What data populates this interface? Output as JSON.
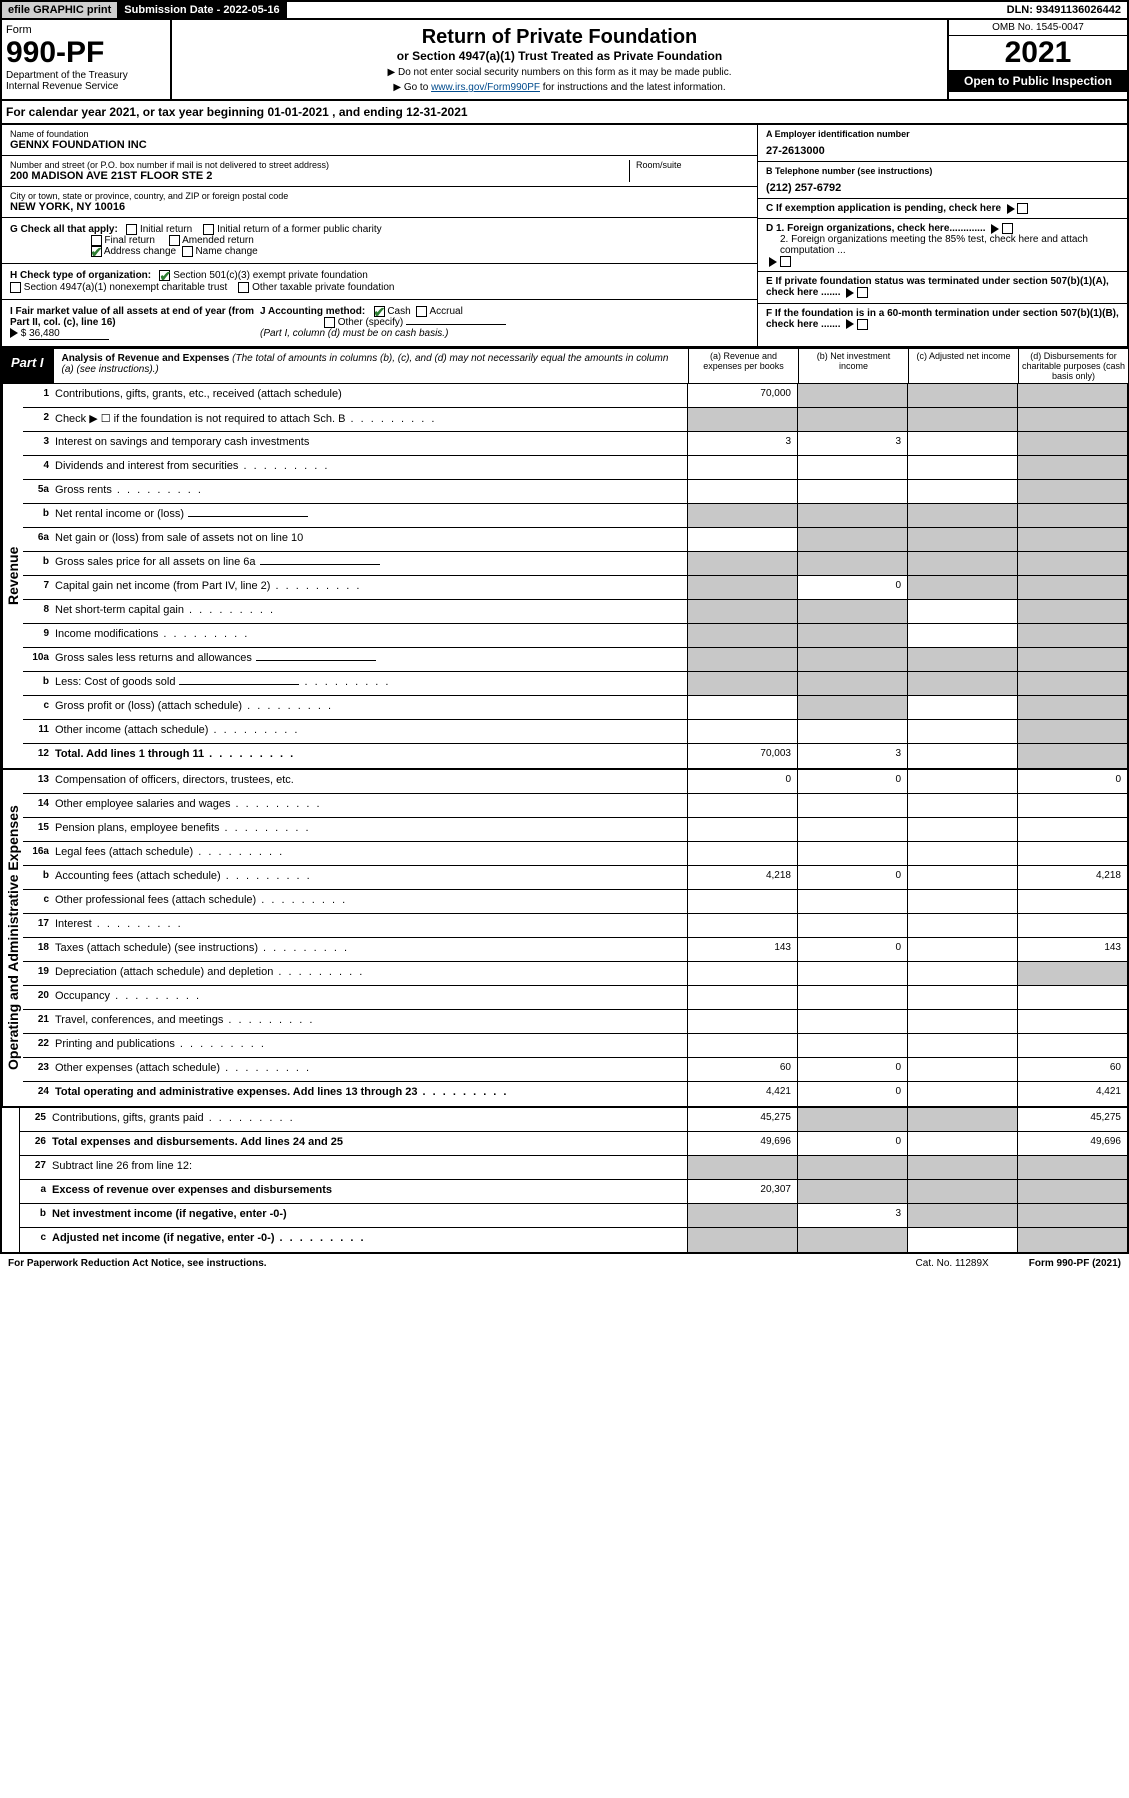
{
  "top": {
    "efile": "efile GRAPHIC print",
    "subdate_label": "Submission Date - 2022-05-16",
    "dln": "DLN: 93491136026442"
  },
  "header": {
    "form_word": "Form",
    "form_num": "990-PF",
    "dept": "Department of the Treasury",
    "irs": "Internal Revenue Service",
    "title": "Return of Private Foundation",
    "subtitle": "or Section 4947(a)(1) Trust Treated as Private Foundation",
    "instr1": "▶ Do not enter social security numbers on this form as it may be made public.",
    "instr2_pre": "▶ Go to ",
    "instr2_link": "www.irs.gov/Form990PF",
    "instr2_post": " for instructions and the latest information.",
    "omb": "OMB No. 1545-0047",
    "year": "2021",
    "open": "Open to Public Inspection"
  },
  "calyear": "For calendar year 2021, or tax year beginning 01-01-2021           , and ending 12-31-2021",
  "info": {
    "name_lbl": "Name of foundation",
    "name": "GENNX FOUNDATION INC",
    "addr_lbl": "Number and street (or P.O. box number if mail is not delivered to street address)",
    "addr": "200 MADISON AVE 21ST FLOOR STE 2",
    "room_lbl": "Room/suite",
    "city_lbl": "City or town, state or province, country, and ZIP or foreign postal code",
    "city": "NEW YORK, NY  10016",
    "a_lbl": "A Employer identification number",
    "a_val": "27-2613000",
    "b_lbl": "B Telephone number (see instructions)",
    "b_val": "(212) 257-6792",
    "c_lbl": "C If exemption application is pending, check here",
    "d1": "D 1. Foreign organizations, check here.............",
    "d2": "2. Foreign organizations meeting the 85% test, check here and attach computation ...",
    "e_lbl": "E  If private foundation status was terminated under section 507(b)(1)(A), check here .......",
    "f_lbl": "F  If the foundation is in a 60-month termination under section 507(b)(1)(B), check here .......",
    "g_lbl": "G Check all that apply:",
    "g_opts": [
      "Initial return",
      "Initial return of a former public charity",
      "Final return",
      "Amended return",
      "Address change",
      "Name change"
    ],
    "h_lbl": "H Check type of organization:",
    "h_opts": [
      "Section 501(c)(3) exempt private foundation",
      "Section 4947(a)(1) nonexempt charitable trust",
      "Other taxable private foundation"
    ],
    "i_lbl": "I Fair market value of all assets at end of year (from Part II, col. (c), line 16)",
    "i_val": "36,480",
    "j_lbl": "J Accounting method:",
    "j_opts": [
      "Cash",
      "Accrual",
      "Other (specify)"
    ],
    "j_note": "(Part I, column (d) must be on cash basis.)"
  },
  "part1": {
    "label": "Part I",
    "title": "Analysis of Revenue and Expenses",
    "note": " (The total of amounts in columns (b), (c), and (d) may not necessarily equal the amounts in column (a) (see instructions).)",
    "cols": [
      "(a)   Revenue and expenses per books",
      "(b)   Net investment income",
      "(c)   Adjusted net income",
      "(d)  Disbursements for charitable purposes (cash basis only)"
    ]
  },
  "side_labels": [
    "Revenue",
    "Operating and Administrative Expenses"
  ],
  "rows": [
    {
      "n": "1",
      "t": "Contributions, gifts, grants, etc., received (attach schedule)",
      "a": "70,000",
      "sb": true,
      "sc": true,
      "sd": true
    },
    {
      "n": "2",
      "t": "Check ▶ ☐ if the foundation is not required to attach Sch. B",
      "sa": true,
      "sb": true,
      "sc": true,
      "sd": true,
      "dots": true
    },
    {
      "n": "3",
      "t": "Interest on savings and temporary cash investments",
      "a": "3",
      "b": "3",
      "sd": true
    },
    {
      "n": "4",
      "t": "Dividends and interest from securities",
      "sd": true,
      "dots": true
    },
    {
      "n": "5a",
      "t": "Gross rents",
      "sd": true,
      "dots": true
    },
    {
      "n": "b",
      "t": "Net rental income or (loss)",
      "sa": true,
      "sb": true,
      "sc": true,
      "sd": true,
      "ul": true
    },
    {
      "n": "6a",
      "t": "Net gain or (loss) from sale of assets not on line 10",
      "sb": true,
      "sc": true,
      "sd": true
    },
    {
      "n": "b",
      "t": "Gross sales price for all assets on line 6a",
      "sa": true,
      "sb": true,
      "sc": true,
      "sd": true,
      "ul": true
    },
    {
      "n": "7",
      "t": "Capital gain net income (from Part IV, line 2)",
      "sa": true,
      "b": "0",
      "sc": true,
      "sd": true,
      "dots": true
    },
    {
      "n": "8",
      "t": "Net short-term capital gain",
      "sa": true,
      "sb": true,
      "sd": true,
      "dots": true
    },
    {
      "n": "9",
      "t": "Income modifications",
      "sa": true,
      "sb": true,
      "sd": true,
      "dots": true
    },
    {
      "n": "10a",
      "t": "Gross sales less returns and allowances",
      "sa": true,
      "sb": true,
      "sc": true,
      "sd": true,
      "ul": true
    },
    {
      "n": "b",
      "t": "Less: Cost of goods sold",
      "sa": true,
      "sb": true,
      "sc": true,
      "sd": true,
      "dots": true,
      "ul": true
    },
    {
      "n": "c",
      "t": "Gross profit or (loss) (attach schedule)",
      "sb": true,
      "sd": true,
      "dots": true
    },
    {
      "n": "11",
      "t": "Other income (attach schedule)",
      "sd": true,
      "dots": true
    },
    {
      "n": "12",
      "t": "Total. Add lines 1 through 11",
      "a": "70,003",
      "b": "3",
      "sd": true,
      "bold": true,
      "dots": true
    },
    {
      "n": "13",
      "t": "Compensation of officers, directors, trustees, etc.",
      "a": "0",
      "b": "0",
      "d": "0"
    },
    {
      "n": "14",
      "t": "Other employee salaries and wages",
      "dots": true
    },
    {
      "n": "15",
      "t": "Pension plans, employee benefits",
      "dots": true
    },
    {
      "n": "16a",
      "t": "Legal fees (attach schedule)",
      "dots": true
    },
    {
      "n": "b",
      "t": "Accounting fees (attach schedule)",
      "a": "4,218",
      "b": "0",
      "d": "4,218",
      "dots": true
    },
    {
      "n": "c",
      "t": "Other professional fees (attach schedule)",
      "dots": true
    },
    {
      "n": "17",
      "t": "Interest",
      "dots": true
    },
    {
      "n": "18",
      "t": "Taxes (attach schedule) (see instructions)",
      "a": "143",
      "b": "0",
      "d": "143",
      "dots": true
    },
    {
      "n": "19",
      "t": "Depreciation (attach schedule) and depletion",
      "sd": true,
      "dots": true
    },
    {
      "n": "20",
      "t": "Occupancy",
      "dots": true
    },
    {
      "n": "21",
      "t": "Travel, conferences, and meetings",
      "dots": true
    },
    {
      "n": "22",
      "t": "Printing and publications",
      "dots": true
    },
    {
      "n": "23",
      "t": "Other expenses (attach schedule)",
      "a": "60",
      "b": "0",
      "d": "60",
      "dots": true
    },
    {
      "n": "24",
      "t": "Total operating and administrative expenses. Add lines 13 through 23",
      "a": "4,421",
      "b": "0",
      "d": "4,421",
      "bold": true,
      "dots": true
    },
    {
      "n": "25",
      "t": "Contributions, gifts, grants paid",
      "a": "45,275",
      "sb": true,
      "sc": true,
      "d": "45,275",
      "dots": true
    },
    {
      "n": "26",
      "t": "Total expenses and disbursements. Add lines 24 and 25",
      "a": "49,696",
      "b": "0",
      "d": "49,696",
      "bold": true
    },
    {
      "n": "27",
      "t": "Subtract line 26 from line 12:",
      "sa": true,
      "sb": true,
      "sc": true,
      "sd": true
    },
    {
      "n": "a",
      "t": "Excess of revenue over expenses and disbursements",
      "a": "20,307",
      "sb": true,
      "sc": true,
      "sd": true,
      "bold": true
    },
    {
      "n": "b",
      "t": "Net investment income (if negative, enter -0-)",
      "sa": true,
      "b": "3",
      "sc": true,
      "sd": true,
      "bold": true
    },
    {
      "n": "c",
      "t": "Adjusted net income (if negative, enter -0-)",
      "sa": true,
      "sb": true,
      "sd": true,
      "bold": true,
      "dots": true
    }
  ],
  "footer": {
    "left": "For Paperwork Reduction Act Notice, see instructions.",
    "mid": "Cat. No. 11289X",
    "right": "Form 990-PF (2021)"
  }
}
